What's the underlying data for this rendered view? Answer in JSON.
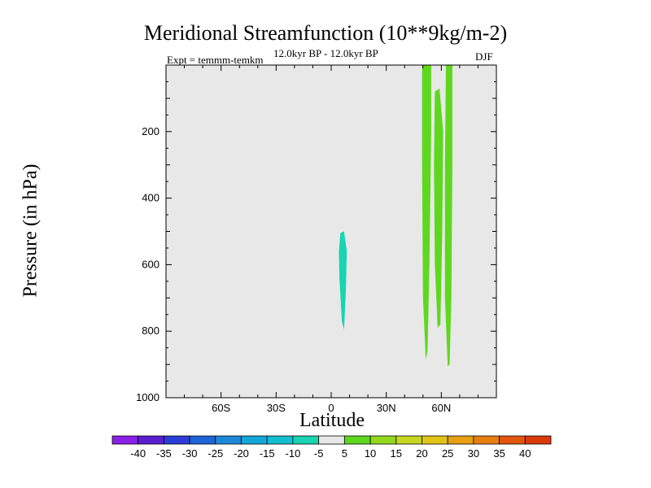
{
  "chart_data": {
    "type": "contour",
    "title": "Meridional Streamfunction (10**9kg/m-2)",
    "subtitle": "12.0kyr BP - 12.0kyr BP",
    "expt_label": "Expt = temmm-temkm",
    "season": "DJF",
    "xlabel": "Latitude",
    "ylabel": "Pressure (in hPa)",
    "xlim": [
      -90,
      90
    ],
    "ylim": [
      1000,
      0
    ],
    "x_ticks": [
      {
        "value": -60,
        "label": "60S"
      },
      {
        "value": -30,
        "label": "30S"
      },
      {
        "value": 0,
        "label": "0"
      },
      {
        "value": 30,
        "label": "30N"
      },
      {
        "value": 60,
        "label": "60N"
      }
    ],
    "y_ticks": [
      {
        "value": 200,
        "label": "200"
      },
      {
        "value": 400,
        "label": "400"
      },
      {
        "value": 600,
        "label": "600"
      },
      {
        "value": 800,
        "label": "800"
      },
      {
        "value": 1000,
        "label": "1000"
      }
    ],
    "colorbar": {
      "levels": [
        "-40",
        "-35",
        "-30",
        "-25",
        "-20",
        "-15",
        "-10",
        "-5",
        "5",
        "10",
        "15",
        "20",
        "25",
        "30",
        "35",
        "40"
      ],
      "colors": [
        "#8a1fe6",
        "#5a1ecf",
        "#2b3dd6",
        "#1e63d8",
        "#1e88d8",
        "#13a6d8",
        "#10c0d0",
        "#18d4b0",
        "#e8e8e8",
        "#5ed81e",
        "#94d81e",
        "#c6d81e",
        "#e2c416",
        "#e6a012",
        "#e67e10",
        "#e2560e",
        "#dc3a0a"
      ]
    },
    "features": [
      {
        "name": "negative-cell",
        "value": -7,
        "color": "#18d4b0",
        "polygon": [
          [
            5.0,
            505
          ],
          [
            7.0,
            500
          ],
          [
            8.5,
            560
          ],
          [
            8.0,
            680
          ],
          [
            7.0,
            795
          ],
          [
            5.8,
            770
          ],
          [
            4.5,
            640
          ],
          [
            4.2,
            560
          ]
        ]
      },
      {
        "name": "positive-cell-a",
        "value": 7,
        "color": "#5ed81e",
        "polygon": [
          [
            49.5,
            0
          ],
          [
            54.5,
            0
          ],
          [
            54.5,
            200
          ],
          [
            53.5,
            600
          ],
          [
            52.5,
            860
          ],
          [
            51.5,
            885
          ],
          [
            50.0,
            700
          ],
          [
            49.5,
            300
          ]
        ]
      },
      {
        "name": "positive-cell-b",
        "value": 7,
        "color": "#5ed81e",
        "polygon": [
          [
            56.5,
            80
          ],
          [
            59.0,
            70
          ],
          [
            61.0,
            200
          ],
          [
            60.5,
            500
          ],
          [
            59.5,
            780
          ],
          [
            58.0,
            790
          ],
          [
            56.5,
            600
          ],
          [
            56.0,
            300
          ]
        ]
      },
      {
        "name": "positive-cell-c",
        "value": 7,
        "color": "#5ed81e",
        "polygon": [
          [
            62.5,
            0
          ],
          [
            66.0,
            0
          ],
          [
            66.0,
            300
          ],
          [
            65.5,
            700
          ],
          [
            64.5,
            900
          ],
          [
            63.5,
            905
          ],
          [
            62.0,
            700
          ],
          [
            62.0,
            300
          ]
        ]
      }
    ],
    "plot_background": "#e8e8e8"
  }
}
